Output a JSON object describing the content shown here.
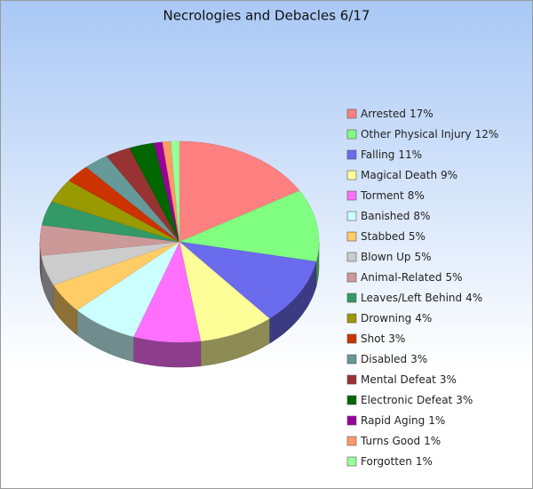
{
  "chart_data": {
    "type": "pie",
    "title": "Necrologies and Debacles 6/17",
    "categories": [
      "Arrested",
      "Other Physical Injury",
      "Falling",
      "Magical Death",
      "Torment",
      "Banished",
      "Stabbed",
      "Blown Up",
      "Animal-Related",
      "Leaves/Left Behind",
      "Drowning",
      "Shot",
      "Disabled",
      "Mental Defeat",
      "Electronic Defeat",
      "Rapid Aging",
      "Turns Good",
      "Forgotten"
    ],
    "values": [
      17,
      12,
      11,
      9,
      8,
      8,
      5,
      5,
      5,
      4,
      4,
      3,
      3,
      3,
      3,
      1,
      1,
      1
    ],
    "value_labels": [
      "17%",
      "12%",
      "11%",
      "9%",
      "8%",
      "8%",
      "5%",
      "5%",
      "5%",
      "4%",
      "4%",
      "3%",
      "3%",
      "3%",
      "3%",
      "1%",
      "1%",
      "1%"
    ],
    "colors": [
      "#ff8080",
      "#80ff80",
      "#6b6bee",
      "#ffff99",
      "#ff70ff",
      "#ccffff",
      "#ffcc66",
      "#cccccc",
      "#cc9999",
      "#339966",
      "#999900",
      "#cc3300",
      "#669999",
      "#993333",
      "#006600",
      "#990099",
      "#ff9966",
      "#99ff99"
    ],
    "legend": "right"
  }
}
